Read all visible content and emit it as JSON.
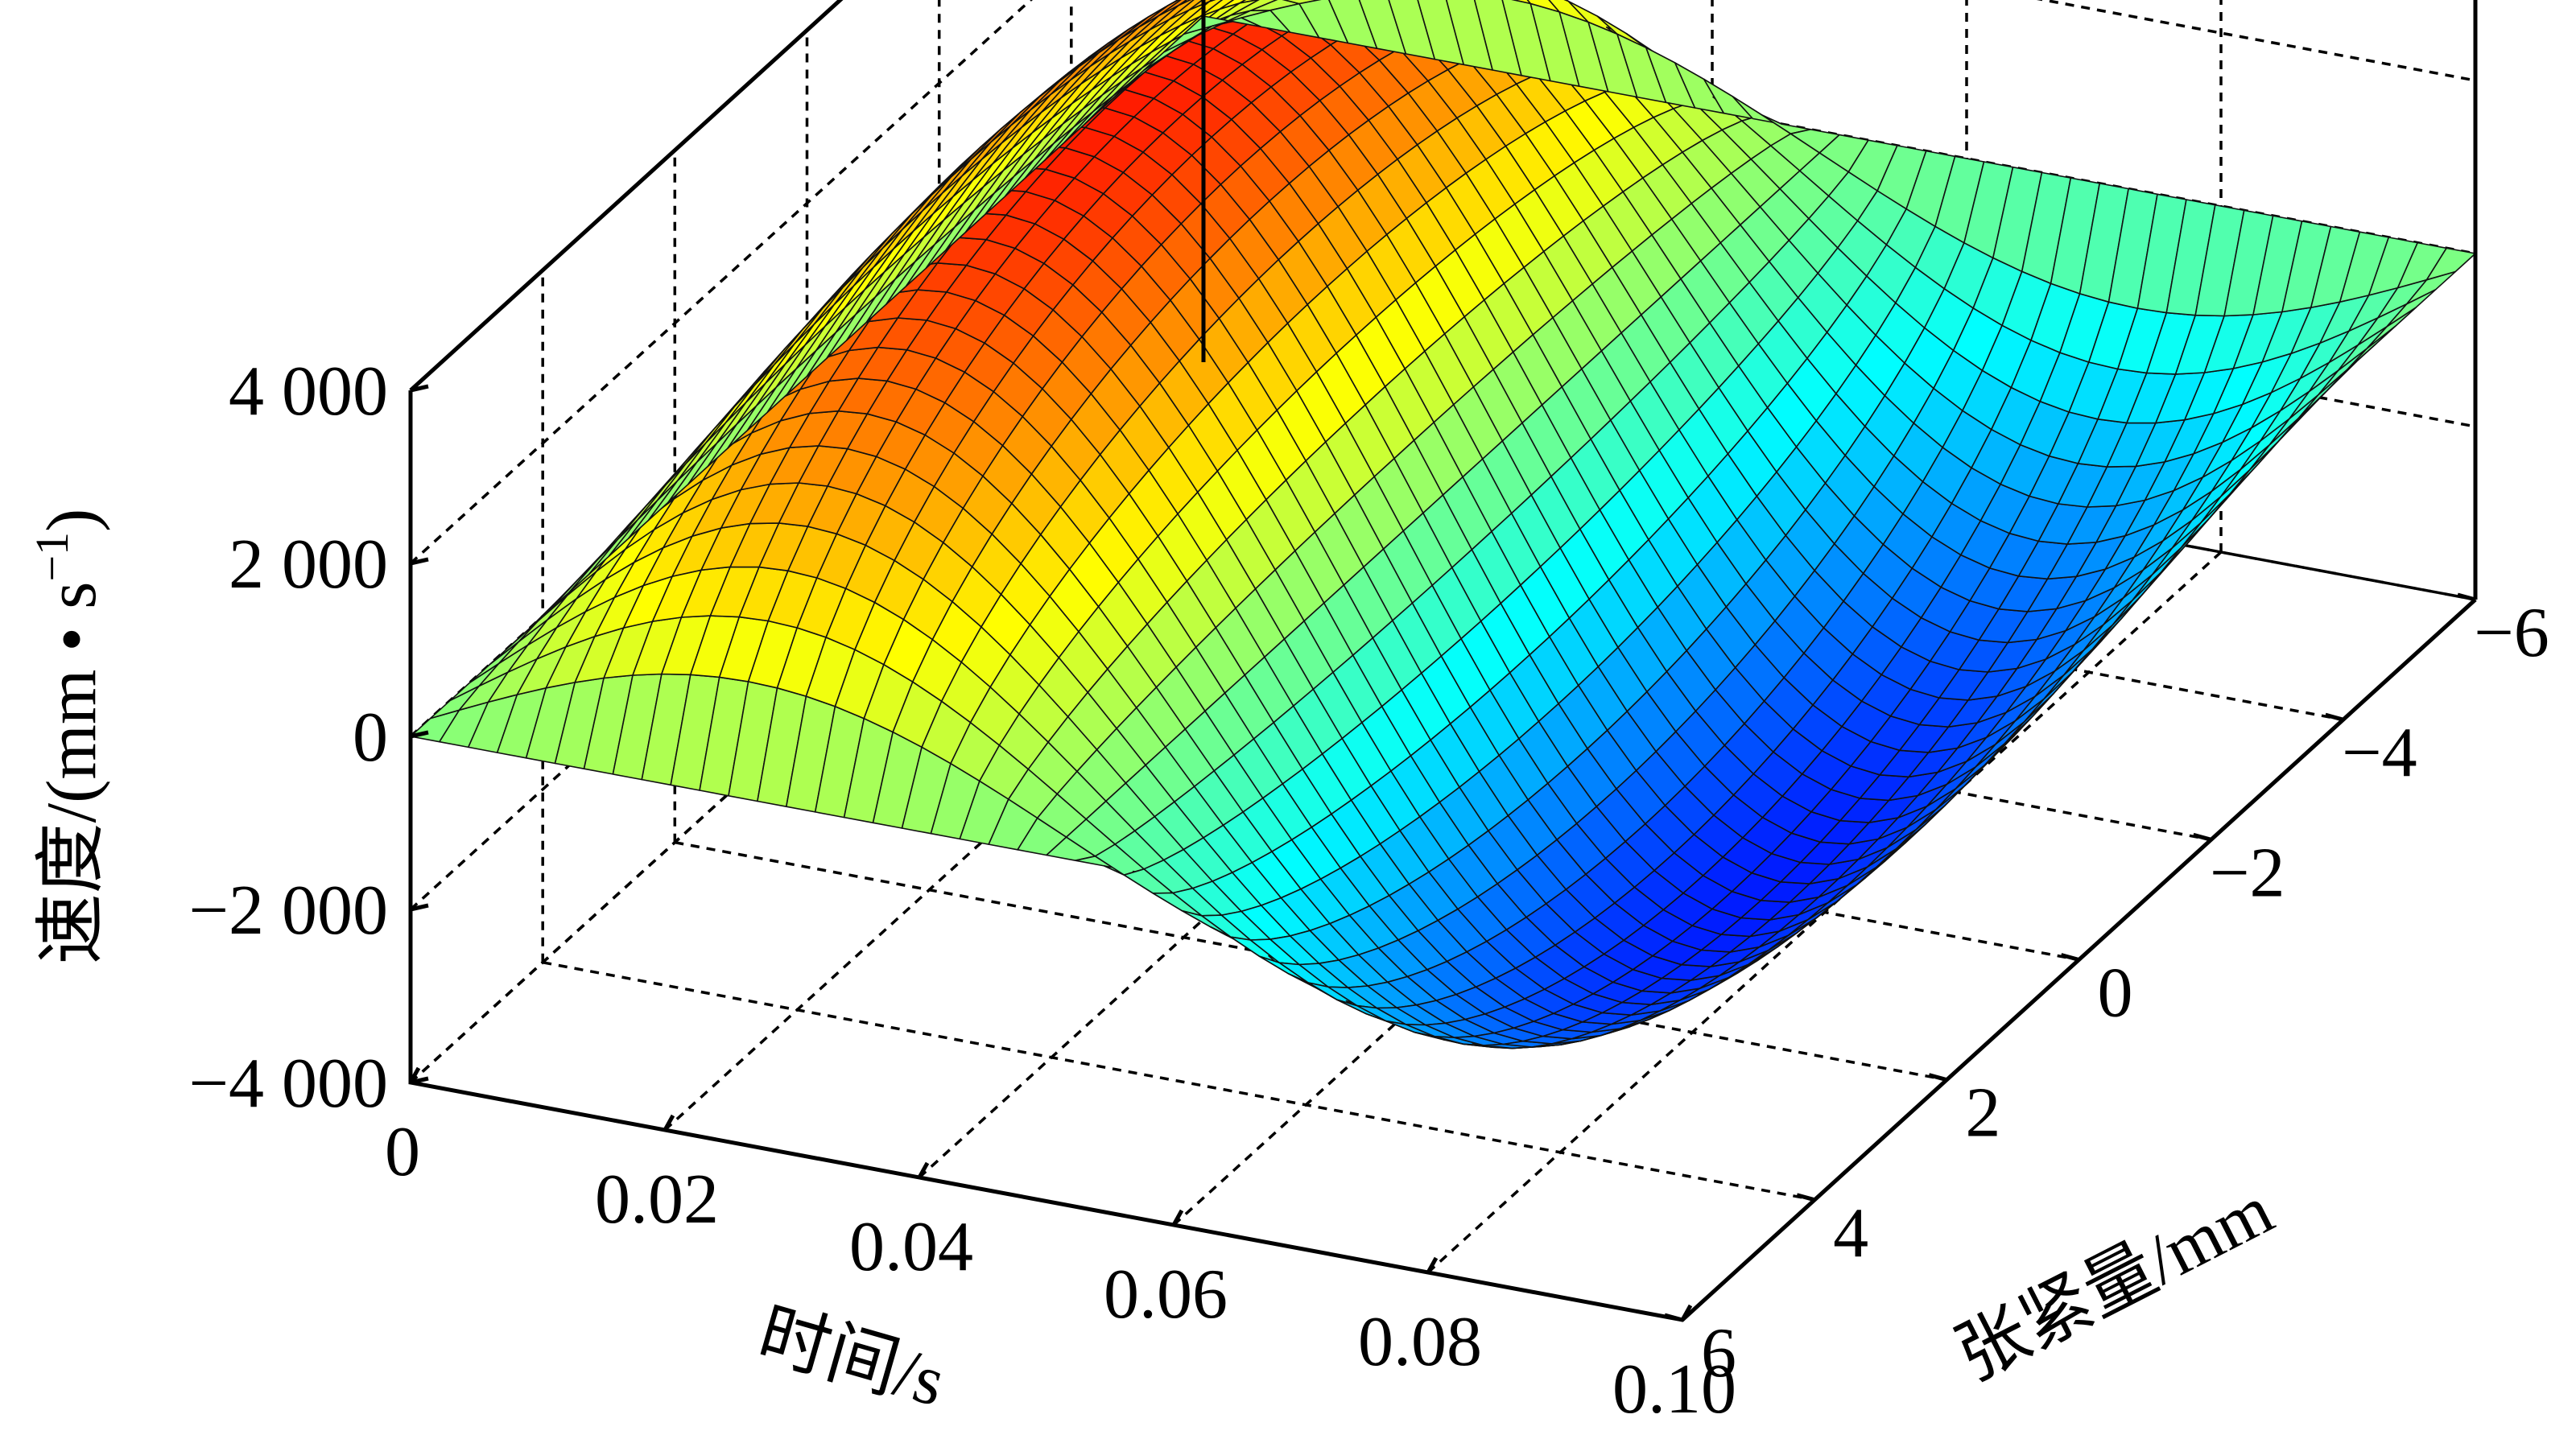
{
  "chart_data": {
    "type": "surface3d",
    "title": "",
    "xlabel": "时间/s",
    "ylabel": "张紧量/mm",
    "zlabel": "速度/(mm • s",
    "zlabel_sup": "−1",
    "zlabel_close": ")",
    "x_ticks": [
      "0",
      "0.02",
      "0.04",
      "0.06",
      "0.08",
      "0.10"
    ],
    "y_ticks": [
      "6",
      "4",
      "2",
      "0",
      "−2",
      "−4",
      "−6"
    ],
    "z_ticks": [
      "−4 000",
      "−2 000",
      "0",
      "2 000",
      "4 000"
    ],
    "xlim": [
      0,
      0.1
    ],
    "ylim": [
      -6,
      6
    ],
    "zlim": [
      -4000,
      4000
    ],
    "grid": true,
    "colormap": "jet",
    "surface": {
      "description": "v(t, d) = A(d) * sin(2*pi*t / T)",
      "period_s": 0.1,
      "amplitude_peak_mm_s": 4000,
      "amplitude_at_edges_mm_s": 0,
      "spikes_near_d_mm": 0
    }
  }
}
